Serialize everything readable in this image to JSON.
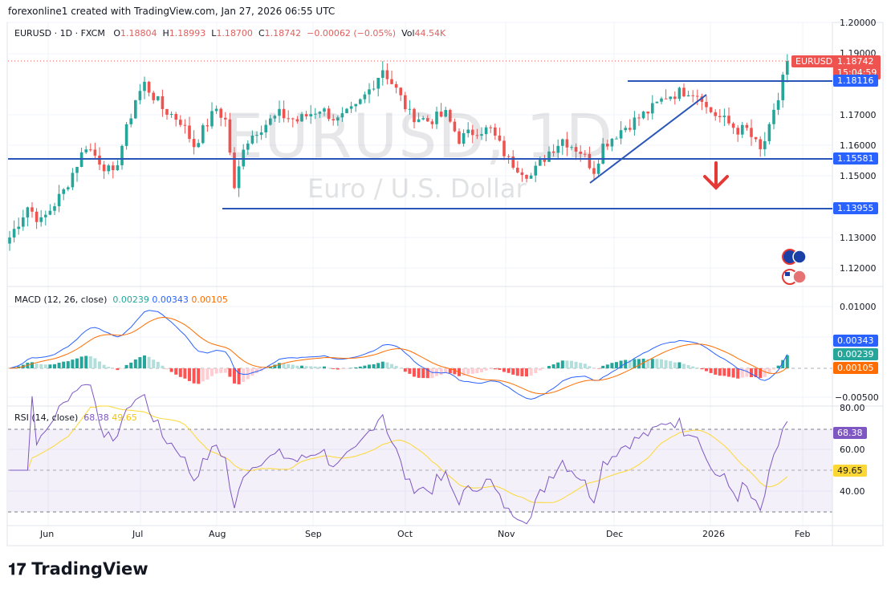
{
  "credit": "forexonline1 created with TradingView.com, Jan 27, 2026 06:55 UTC",
  "legend": {
    "symbol": "EURUSD · 1D · FXCM",
    "o_label": "O",
    "o": "1.18804",
    "h_label": "H",
    "h": "1.18993",
    "l_label": "L",
    "l": "1.18700",
    "c_label": "C",
    "c": "1.18742",
    "change": "−0.00062 (−0.05%)",
    "vol_label": "Vol",
    "vol": "44.54K"
  },
  "watermark": {
    "title": "EURUSD, 1D",
    "subtitle": "Euro / U.S. Dollar"
  },
  "price_axis": [
    "1.20000",
    "1.19000",
    "1.17000",
    "1.16000",
    "1.15000",
    "1.13000",
    "1.12000"
  ],
  "price_tags": {
    "symbol": "EURUSD",
    "last": "1.18742",
    "countdown": "15:04:59",
    "resistance": "1.18116",
    "support1": "1.15581",
    "support2": "1.13955"
  },
  "macd": {
    "label": "MACD (12, 26, close)",
    "hist": "0.00239",
    "macd": "0.00343",
    "signal": "0.00105",
    "axis": [
      "0.01000",
      "−0.00500"
    ]
  },
  "rsi": {
    "label": "RSI (14, close)",
    "value": "68.38",
    "ma": "49.65",
    "axis": [
      "80.00",
      "60.00",
      "40.00"
    ]
  },
  "time_axis": [
    "Jun",
    "Jul",
    "Aug",
    "Sep",
    "Oct",
    "Nov",
    "Dec",
    "2026",
    "Feb"
  ],
  "logo": "TradingView",
  "colors": {
    "up": "#26a69a",
    "down": "#ef5350",
    "line": "#2962ff",
    "macd": "#2962ff",
    "signal": "#ff6d00",
    "rsi": "#7e57c2",
    "rsi_ma": "#fdd835"
  },
  "chart_data": {
    "type": "candlestick",
    "title": "EURUSD · 1D · FXCM",
    "ylim": [
      1.115,
      1.2
    ],
    "horizontal_levels": [
      1.18116,
      1.15581,
      1.13955
    ],
    "price_keypoints": [
      [
        0,
        1.13
      ],
      [
        4,
        1.14
      ],
      [
        7,
        1.135
      ],
      [
        12,
        1.145
      ],
      [
        17,
        1.16
      ],
      [
        23,
        1.15
      ],
      [
        26,
        1.165
      ],
      [
        28,
        1.175
      ],
      [
        30,
        1.18
      ],
      [
        34,
        1.172
      ],
      [
        38,
        1.168
      ],
      [
        41,
        1.16
      ],
      [
        46,
        1.172
      ],
      [
        48,
        1.168
      ],
      [
        49,
        1.158
      ],
      [
        50,
        1.145
      ],
      [
        52,
        1.16
      ],
      [
        55,
        1.165
      ],
      [
        60,
        1.17
      ],
      [
        64,
        1.168
      ],
      [
        69,
        1.172
      ],
      [
        73,
        1.168
      ],
      [
        77,
        1.172
      ],
      [
        80,
        1.178
      ],
      [
        83,
        1.185
      ],
      [
        86,
        1.178
      ],
      [
        89,
        1.17
      ],
      [
        93,
        1.168
      ],
      [
        97,
        1.17
      ],
      [
        100,
        1.162
      ],
      [
        104,
        1.165
      ],
      [
        107,
        1.165
      ],
      [
        111,
        1.155
      ],
      [
        116,
        1.15
      ],
      [
        120,
        1.158
      ],
      [
        123,
        1.162
      ],
      [
        127,
        1.158
      ],
      [
        130,
        1.152
      ],
      [
        132,
        1.16
      ],
      [
        136,
        1.165
      ],
      [
        139,
        1.168
      ],
      [
        143,
        1.172
      ],
      [
        146,
        1.176
      ],
      [
        151,
        1.178
      ],
      [
        154,
        1.176
      ],
      [
        155,
        1.172
      ],
      [
        159,
        1.168
      ],
      [
        162,
        1.165
      ],
      [
        164,
        1.165
      ],
      [
        167,
        1.158
      ],
      [
        169,
        1.165
      ],
      [
        171,
        1.175
      ],
      [
        172,
        1.183
      ],
      [
        173,
        1.18742
      ]
    ],
    "macd_last": {
      "macd": 0.00343,
      "signal": 0.00105,
      "hist": 0.00239
    },
    "rsi_last": {
      "rsi": 68.38,
      "ma": 49.65
    },
    "rsi_bands": [
      70,
      30
    ]
  }
}
